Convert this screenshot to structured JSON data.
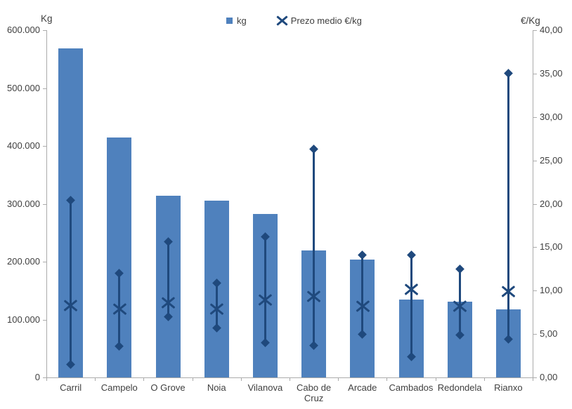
{
  "chart_data": {
    "type": "bar",
    "title": "",
    "categories": [
      "Carril",
      "Campelo",
      "O Grove",
      "Noia",
      "Vilanova",
      "Cabo de Cruz",
      "Arcade",
      "Cambados",
      "Redondela",
      "Rianxo"
    ],
    "series": [
      {
        "name": "kg",
        "kind": "column",
        "axis": "left",
        "values": [
          568000,
          414000,
          314000,
          305000,
          282000,
          219000,
          204000,
          135000,
          131000,
          118000
        ]
      },
      {
        "name": "Prezo medio €/kg",
        "kind": "range-with-mean-marker",
        "axis": "right",
        "mean": [
          8.3,
          7.9,
          8.6,
          7.9,
          8.9,
          9.3,
          8.2,
          10.1,
          8.2,
          9.9
        ],
        "min": [
          1.5,
          3.6,
          7.0,
          5.7,
          4.0,
          3.7,
          5.0,
          2.4,
          4.9,
          4.4
        ],
        "max": [
          20.4,
          12.0,
          15.6,
          10.9,
          16.2,
          26.3,
          14.1,
          14.1,
          12.5,
          35.0
        ]
      }
    ],
    "left_axis": {
      "title": "Kg",
      "min": 0,
      "max": 600000,
      "step": 100000,
      "tick_labels_top_to_bottom": [
        "600.000",
        "500.000",
        "400.000",
        "300.000",
        "200.000",
        "100.000",
        "0"
      ]
    },
    "right_axis": {
      "title": "€/Kg",
      "min": 0,
      "max": 40,
      "step": 5,
      "tick_labels_top_to_bottom": [
        "40,00",
        "35,00",
        "30,00",
        "25,00",
        "20,00",
        "15,00",
        "10,00",
        "5,00",
        "0,00"
      ]
    },
    "legend": {
      "position": "top",
      "items": [
        {
          "label": "kg",
          "marker": "square",
          "color": "#4F81BD"
        },
        {
          "label": "Prezo medio €/kg",
          "marker": "x",
          "color": "#1F497D"
        }
      ]
    },
    "grid": false,
    "colors": {
      "bar": "#4F81BD",
      "marker": "#1F497D",
      "axis_line": "#ABABAB",
      "text": "#3F3F3F",
      "background": "#FFFFFF"
    }
  }
}
